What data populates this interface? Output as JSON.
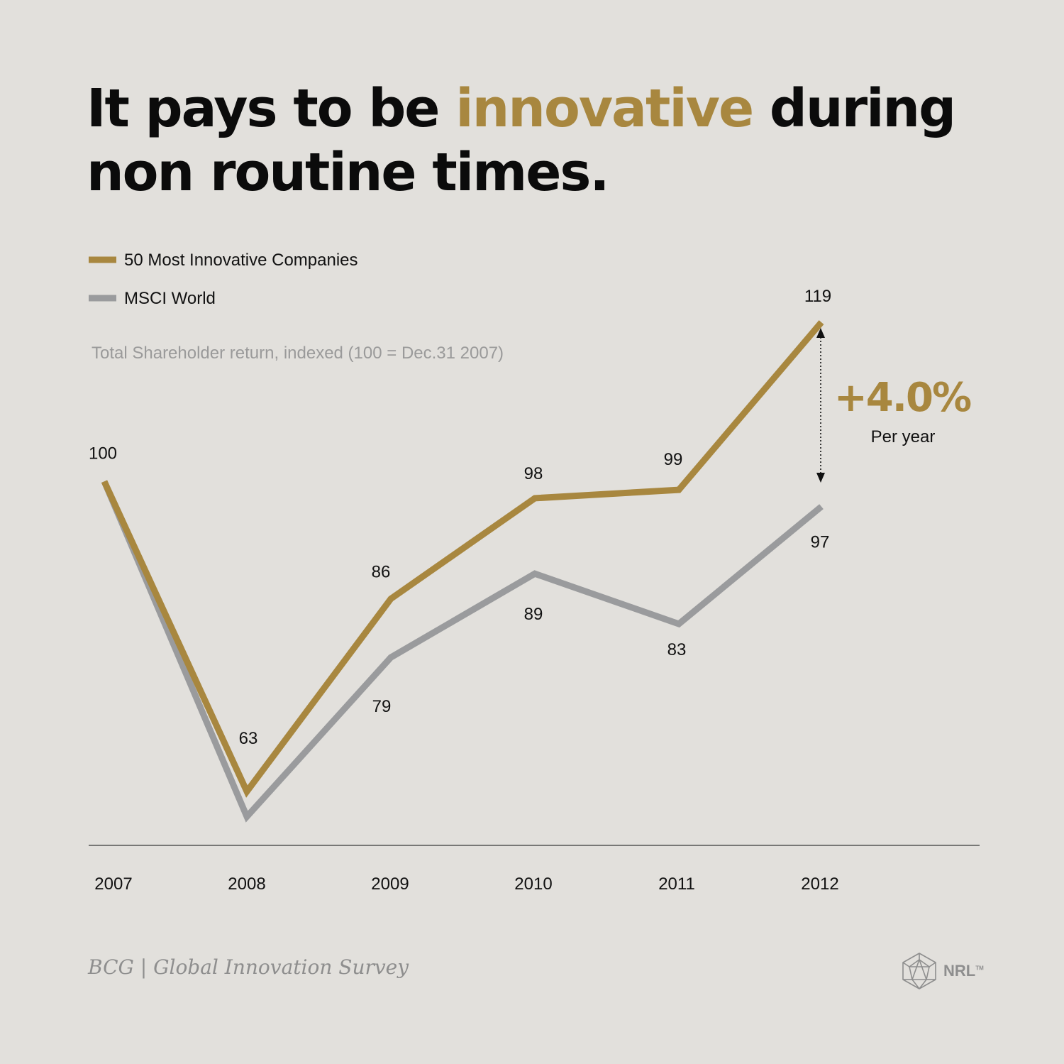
{
  "header": {
    "title_part1": "It pays to be ",
    "title_accent": "innovative",
    "title_part2": " during",
    "title_line2": "non routine times."
  },
  "colors": {
    "background": "#e2e0dc",
    "accent_gold": "#a8873f",
    "series_gray": "#9a9b9d",
    "text": "#0b0b0b",
    "muted": "#9a9a9a"
  },
  "chart_data": {
    "type": "line",
    "subtitle": "Total Shareholder return, indexed (100 = Dec.31 2007)",
    "categories": [
      "2007",
      "2008",
      "2009",
      "2010",
      "2011",
      "2012"
    ],
    "series": [
      {
        "name": "50 Most Innovative Companies",
        "color": "#a8873f",
        "values": [
          100,
          63,
          86,
          98,
          99,
          119
        ]
      },
      {
        "name": "MSCI World",
        "color": "#9a9b9d",
        "values": [
          100,
          60,
          79,
          89,
          83,
          97
        ]
      }
    ],
    "data_labels": {
      "50 Most Innovative Companies": [
        "100",
        "63",
        "86",
        "98",
        "99",
        "119"
      ],
      "MSCI World": [
        "",
        "",
        "79",
        "89",
        "83",
        "97"
      ]
    },
    "ylim": [
      58.6,
      120.7
    ],
    "legend_position": "top-left",
    "grid": false,
    "annotation": {
      "value": "+4.0%",
      "label": "Per year"
    }
  },
  "footer": {
    "source": "BCG | Global Innovation Survey",
    "logo_text": "NRL",
    "logo_tm": "TM"
  }
}
